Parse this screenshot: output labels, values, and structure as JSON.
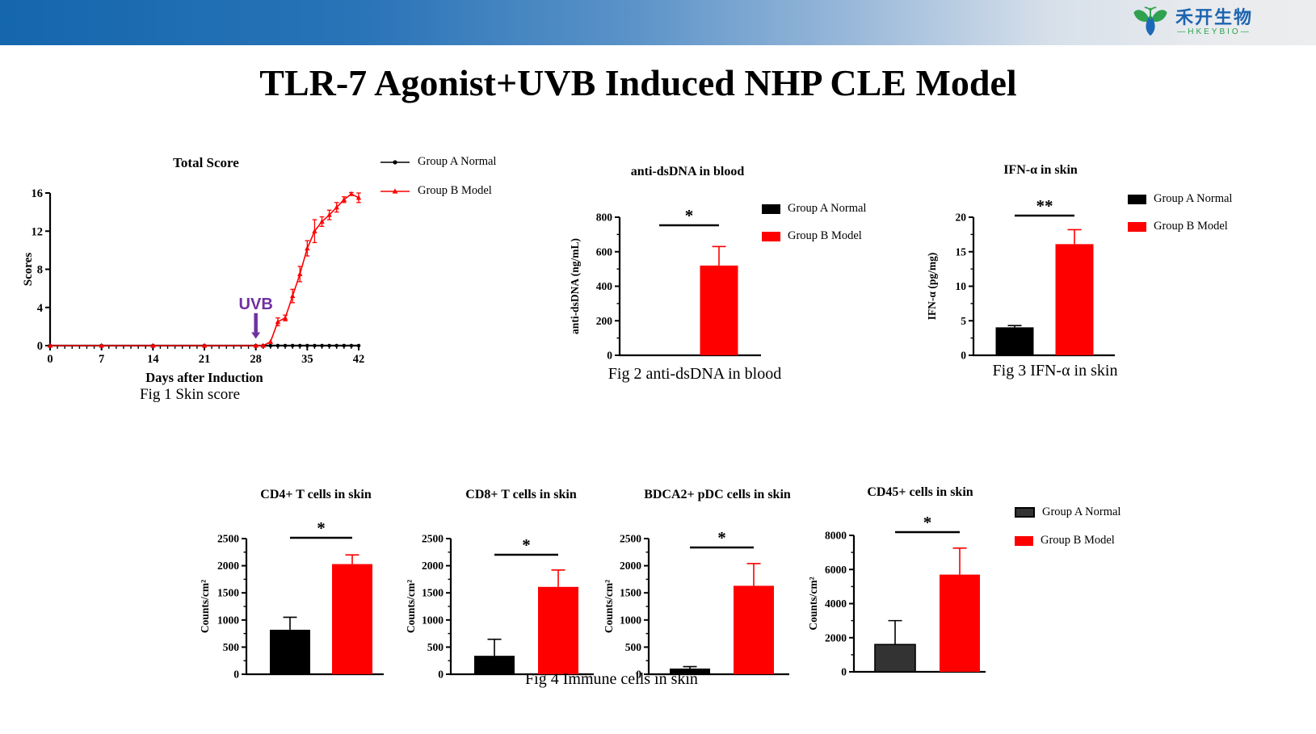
{
  "header": {
    "logo_cn": "禾开生物",
    "logo_en": "—HKEYBIO—"
  },
  "title": "TLR-7 Agonist+UVB Induced NHP CLE Model",
  "legend_labels": {
    "group_a": "Group A Normal",
    "group_b": "Group B Model"
  },
  "colors": {
    "group_a": "#000000",
    "group_a_fig4": "#333333",
    "group_b": "#fe0000",
    "uvb_purple": "#7030a0",
    "header_blue": "#1466ad"
  },
  "captions": {
    "fig1": "Fig 1 Skin score",
    "fig2": "Fig 2 anti-dsDNA in blood",
    "fig3": "Fig 3 IFN-α in skin",
    "fig4": "Fig 4 Immune cells in skin"
  },
  "chart_data": [
    {
      "id": "fig1",
      "type": "line",
      "title": "Total Score",
      "xlabel": "Days after Induction",
      "ylabel": "Scores",
      "xlim": [
        0,
        42
      ],
      "ylim": [
        0,
        16
      ],
      "xticks": [
        0,
        7,
        14,
        21,
        28,
        35,
        42
      ],
      "yticks": [
        0,
        4,
        8,
        12,
        16
      ],
      "x_minor_tick_every": 1,
      "grid": false,
      "legend_position": "top-right",
      "annotation": {
        "text": "UVB",
        "x": 28,
        "color": "#7030a0"
      },
      "series": [
        {
          "name": "Group A Normal",
          "color": "#000000",
          "marker": "circle",
          "x": [
            0,
            7,
            14,
            21,
            28,
            29,
            30,
            31,
            32,
            33,
            34,
            35,
            36,
            37,
            38,
            39,
            40,
            41,
            42
          ],
          "y": [
            0,
            0,
            0,
            0,
            0,
            0,
            0,
            0,
            0,
            0,
            0,
            0,
            0,
            0,
            0,
            0,
            0,
            0,
            0
          ],
          "err": [
            0,
            0,
            0,
            0,
            0,
            0,
            0,
            0,
            0,
            0,
            0,
            0,
            0,
            0,
            0,
            0,
            0,
            0,
            0
          ]
        },
        {
          "name": "Group B Model",
          "color": "#fe0000",
          "marker": "triangle",
          "x": [
            0,
            7,
            14,
            21,
            28,
            29,
            30,
            31,
            32,
            33,
            34,
            35,
            36,
            37,
            38,
            39,
            40,
            41,
            42
          ],
          "y": [
            0,
            0,
            0,
            0,
            0,
            0,
            0.4,
            2.5,
            2.9,
            5.2,
            7.5,
            10.2,
            12,
            13,
            13.7,
            14.5,
            15.3,
            15.9,
            15.5
          ],
          "err": [
            0,
            0,
            0,
            0,
            0,
            0,
            0,
            0.4,
            0.3,
            0.7,
            0.8,
            0.8,
            1.2,
            0.5,
            0.5,
            0.5,
            0.3,
            0.15,
            0.5
          ]
        }
      ]
    },
    {
      "id": "fig2",
      "type": "bar",
      "title": "anti-dsDNA in blood",
      "ylabel": "anti-dsDNA (ng/mL)",
      "ylim": [
        0,
        800
      ],
      "ytick_step": 200,
      "sig": "*",
      "bars": [
        {
          "name": "Group A Normal",
          "value": 0,
          "err_top": 0,
          "color": "#000000"
        },
        {
          "name": "Group B Model",
          "value": 520,
          "err_top": 630,
          "color": "#fe0000"
        }
      ]
    },
    {
      "id": "fig3",
      "type": "bar",
      "title": "IFN-α in skin",
      "ylabel": "IFN-α (pg/mg)",
      "ylim": [
        0,
        20
      ],
      "ytick_step": 5,
      "sig": "**",
      "bars": [
        {
          "name": "Group A Normal",
          "value": 4.05,
          "err_top": 4.3,
          "color": "#000000"
        },
        {
          "name": "Group B Model",
          "value": 16.1,
          "err_top": 18.2,
          "color": "#fe0000"
        }
      ]
    },
    {
      "id": "fig4a",
      "type": "bar",
      "title": "CD4+ T cells in skin",
      "ylabel": "Counts/cm²",
      "ylim": [
        0,
        2500
      ],
      "ytick_step": 500,
      "sig": "*",
      "bars": [
        {
          "name": "Group A Normal",
          "value": 820,
          "err_top": 1050,
          "color": "#000000"
        },
        {
          "name": "Group B Model",
          "value": 2030,
          "err_top": 2200,
          "color": "#fe0000"
        }
      ]
    },
    {
      "id": "fig4b",
      "type": "bar",
      "title": "CD8+ T cells in skin",
      "ylabel": "Counts/cm²",
      "ylim": [
        0,
        2500
      ],
      "ytick_step": 500,
      "sig": "*",
      "bars": [
        {
          "name": "Group A Normal",
          "value": 340,
          "err_top": 645,
          "color": "#000000"
        },
        {
          "name": "Group B Model",
          "value": 1610,
          "err_top": 1920,
          "color": "#fe0000"
        }
      ]
    },
    {
      "id": "fig4c",
      "type": "bar",
      "title": "BDCA2+ pDC cells in skin",
      "ylabel": "Counts/cm²",
      "ylim": [
        0,
        2500
      ],
      "ytick_step": 500,
      "sig": "*",
      "bars": [
        {
          "name": "Group A Normal",
          "value": 105,
          "err_top": 140,
          "color": "#000000"
        },
        {
          "name": "Group B Model",
          "value": 1630,
          "err_top": 2040,
          "color": "#fe0000"
        }
      ]
    },
    {
      "id": "fig4d",
      "type": "bar",
      "title": "CD45+ cells in skin",
      "ylabel": "Counts/cm²",
      "ylim": [
        0,
        8000
      ],
      "ytick_step": 2000,
      "sig": "*",
      "bars": [
        {
          "name": "Group A Normal",
          "value": 1600,
          "err_top": 3000,
          "color": "#333333",
          "stroke": "#000000"
        },
        {
          "name": "Group B Model",
          "value": 5700,
          "err_top": 7250,
          "color": "#fe0000"
        }
      ]
    }
  ]
}
